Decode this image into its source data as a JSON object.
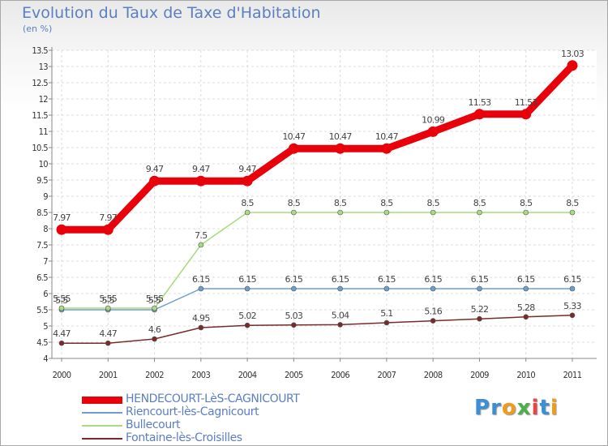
{
  "header": {
    "title": "Evolution du Taux de Taxe d'Habitation",
    "unit": "(en %)"
  },
  "logo": {
    "text": [
      "P",
      "r",
      "o",
      "x",
      "i",
      "t",
      "i"
    ],
    "colors": [
      "#3a8fd8",
      "#3a8fd8",
      "#f29a1a",
      "#4ab04a",
      "#e64545",
      "#3a8fd8",
      "#f29a1a"
    ]
  },
  "chart_data": {
    "type": "line",
    "x": [
      "2000",
      "2001",
      "2002",
      "2003",
      "2004",
      "2005",
      "2006",
      "2007",
      "2008",
      "2009",
      "2010",
      "2011"
    ],
    "ylim": [
      4,
      13.5
    ],
    "yticks": [
      "4",
      "4.5",
      "5",
      "5.5",
      "6",
      "6.5",
      "7",
      "7.5",
      "8",
      "8.5",
      "9",
      "9.5",
      "10",
      "10.5",
      "11",
      "11.5",
      "12",
      "12.5",
      "13",
      "13.5"
    ],
    "grid": true,
    "legend_position": "bottom-left",
    "series": [
      {
        "name": "HENDECOURT-LèS-CAGNICOURT",
        "color": "#e8000b",
        "width": 9,
        "values": [
          7.97,
          7.97,
          9.47,
          9.47,
          9.47,
          10.47,
          10.47,
          10.47,
          10.99,
          11.53,
          11.53,
          13.03
        ],
        "labels": [
          "7.97",
          "7.97",
          "9.47",
          "9.47",
          "9.47",
          "10.47",
          "10.47",
          "10.47",
          "10.99",
          "11.53",
          "11.53",
          "13.03"
        ]
      },
      {
        "name": "Riencourt-lès-Cagnicourt",
        "color": "#6c9ed0",
        "width": 1.5,
        "values": [
          5.5,
          5.5,
          5.5,
          6.15,
          6.15,
          6.15,
          6.15,
          6.15,
          6.15,
          6.15,
          6.15,
          6.15
        ],
        "labels": [
          "5.5",
          "5.5",
          "5.5",
          "6.15",
          "6.15",
          "6.15",
          "6.15",
          "6.15",
          "6.15",
          "6.15",
          "6.15",
          "6.15"
        ]
      },
      {
        "name": "Bullecourt",
        "color": "#a9dc7f",
        "width": 1.5,
        "values": [
          5.55,
          5.55,
          5.55,
          7.5,
          8.5,
          8.5,
          8.5,
          8.5,
          8.5,
          8.5,
          8.5,
          8.5
        ],
        "labels": [
          "5.55",
          "5.55",
          "5.55",
          "7.5",
          "8.5",
          "8.5",
          "8.5",
          "8.5",
          "8.5",
          "8.5",
          "8.5",
          "8.5"
        ]
      },
      {
        "name": "Fontaine-lès-Croisilles",
        "color": "#7a2a2a",
        "width": 1.5,
        "values": [
          4.47,
          4.47,
          4.6,
          4.95,
          5.02,
          5.03,
          5.04,
          5.1,
          5.16,
          5.22,
          5.28,
          5.33
        ],
        "labels": [
          "4.47",
          "4.47",
          "4.6",
          "4.95",
          "5.02",
          "5.03",
          "5.04",
          "5.1",
          "5.16",
          "5.22",
          "5.28",
          "5.33"
        ]
      }
    ]
  }
}
